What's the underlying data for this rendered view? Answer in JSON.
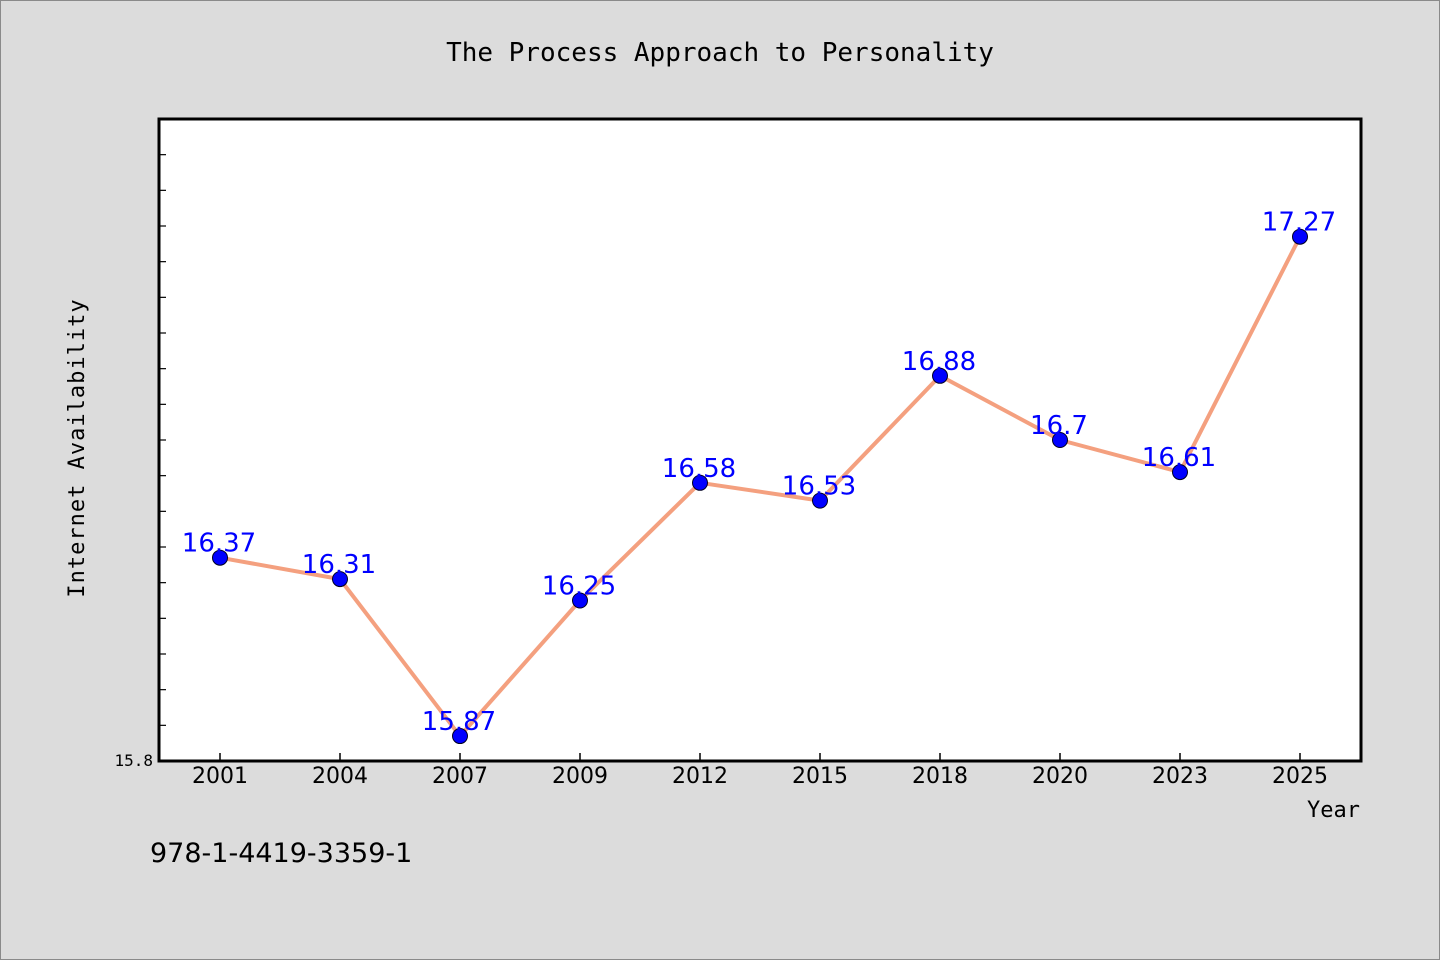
{
  "chart_data": {
    "type": "line",
    "title": "The Process Approach to Personality",
    "xlabel": "Year",
    "ylabel": "Internet Availability",
    "categories": [
      "2001",
      "2004",
      "2007",
      "2009",
      "2012",
      "2015",
      "2018",
      "2020",
      "2023",
      "2025"
    ],
    "series": [
      {
        "values": [
          16.37,
          16.31,
          15.87,
          16.25,
          16.58,
          16.53,
          16.88,
          16.7,
          16.61,
          17.27
        ]
      }
    ],
    "ylim": [
      15.8,
      17.6
    ],
    "y_tick_labels": [
      "15.8"
    ],
    "data_labels": true,
    "grid": false,
    "colors": {
      "line": "#f4a07f",
      "marker": "#0000ff",
      "data_label": "#0000ff",
      "plot_bg": "#ffffff",
      "page_bg": "#dcdcdc"
    }
  },
  "footer": {
    "code": "978-1-4419-3359-1"
  }
}
